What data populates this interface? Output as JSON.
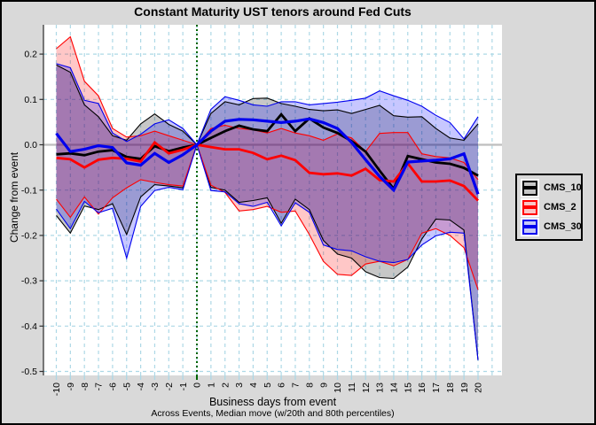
{
  "title": "Constant Maturity UST tenors around Fed Cuts",
  "axes": {
    "ylabel": "Change from event",
    "xlabel": "Business days from event",
    "xlabel_note": "Across Events, Median move (w/20th and 80th percentiles)",
    "ytick_labels": [
      "0.2",
      "0.1",
      "0.0",
      "-0.1",
      "-0.2",
      "-0.3",
      "-0.4",
      "-0.5"
    ],
    "ytick_values": [
      0.2,
      0.1,
      0.0,
      -0.1,
      -0.2,
      -0.3,
      -0.4,
      -0.5
    ]
  },
  "colors": {
    "background": "#d9d9d9",
    "panel": "#ffffff",
    "gridline": "#add8e6",
    "zero_line": "#bebebe",
    "event_line": "#006400",
    "axis": "#000000",
    "tick_x": "#add8e6",
    "tick_y": "#303030"
  },
  "chart_data": {
    "type": "line",
    "title": "Constant Maturity UST tenors around Fed Cuts",
    "xlabel": "Business days from event",
    "ylabel": "Change from event",
    "subtitle": "Across Events, Median move (w/20th and 80th percentiles)",
    "grid": true,
    "legend_position": "right",
    "xlim": [
      -10.9,
      21.7
    ],
    "ylim": [
      -0.51,
      0.265
    ],
    "event_line_x": 0,
    "x": [
      -10,
      -9,
      -8,
      -7,
      -6,
      -5,
      -4,
      -3,
      -2,
      -1,
      0,
      1,
      2,
      3,
      4,
      5,
      6,
      7,
      8,
      9,
      10,
      11,
      12,
      13,
      14,
      15,
      16,
      17,
      18,
      19,
      20
    ],
    "series": [
      {
        "name": "CMS_10",
        "color": "#000000",
        "band_fill": "rgba(0,0,0,0.22)",
        "key_fill": "#c6c6c6",
        "median": [
          -0.021,
          -0.019,
          -0.023,
          -0.015,
          -0.012,
          -0.027,
          -0.031,
          -0.003,
          -0.014,
          -0.006,
          0,
          0.015,
          0.03,
          0.042,
          0.034,
          0.03,
          0.067,
          0.03,
          0.058,
          0.038,
          0.026,
          0.008,
          -0.015,
          -0.057,
          -0.097,
          -0.025,
          -0.032,
          -0.039,
          -0.042,
          -0.051,
          -0.068
        ],
        "p80": [
          0.176,
          0.16,
          0.088,
          0.062,
          0.02,
          0.01,
          0.046,
          0.068,
          0.045,
          0.03,
          0,
          0.069,
          0.095,
          0.088,
          0.102,
          0.103,
          0.091,
          0.085,
          0.078,
          0.075,
          0.077,
          0.069,
          0.078,
          0.087,
          0.064,
          0.061,
          0.062,
          0.036,
          0.015,
          0.01,
          0.046
        ],
        "p20": [
          -0.156,
          -0.195,
          -0.135,
          -0.143,
          -0.13,
          -0.198,
          -0.115,
          -0.088,
          -0.091,
          -0.095,
          0,
          -0.094,
          -0.1,
          -0.127,
          -0.123,
          -0.117,
          -0.173,
          -0.12,
          -0.143,
          -0.211,
          -0.241,
          -0.25,
          -0.28,
          -0.293,
          -0.295,
          -0.27,
          -0.208,
          -0.164,
          -0.166,
          -0.188,
          -0.475
        ]
      },
      {
        "name": "CMS_2",
        "color": "#ff0000",
        "band_fill": "rgba(255,0,0,0.22)",
        "key_fill": "#f9c6c6",
        "median": [
          -0.029,
          -0.032,
          -0.05,
          -0.033,
          -0.029,
          -0.031,
          -0.037,
          0.005,
          -0.019,
          -0.011,
          0,
          -0.005,
          -0.01,
          -0.01,
          -0.018,
          -0.032,
          -0.024,
          -0.034,
          -0.062,
          -0.065,
          -0.063,
          -0.068,
          -0.053,
          -0.078,
          -0.081,
          -0.041,
          -0.081,
          -0.081,
          -0.079,
          -0.091,
          -0.123
        ],
        "p80": [
          0.212,
          0.238,
          0.14,
          0.108,
          0.036,
          0.017,
          0.02,
          0.03,
          0.02,
          0.01,
          0,
          0.036,
          0.043,
          0.036,
          0.033,
          0.026,
          0.036,
          0.026,
          0.02,
          0.01,
          0.024,
          0.015,
          -0.015,
          0.025,
          0.027,
          0.027,
          -0.02,
          -0.026,
          -0.029,
          -0.039,
          -0.077
        ],
        "p20": [
          -0.12,
          -0.16,
          -0.115,
          -0.153,
          -0.117,
          -0.095,
          -0.077,
          -0.083,
          -0.088,
          -0.091,
          0,
          -0.089,
          -0.105,
          -0.146,
          -0.143,
          -0.136,
          -0.149,
          -0.146,
          -0.198,
          -0.257,
          -0.286,
          -0.288,
          -0.263,
          -0.257,
          -0.267,
          -0.253,
          -0.195,
          -0.185,
          -0.2,
          -0.227,
          -0.32
        ]
      },
      {
        "name": "CMS_30",
        "color": "#0000ee",
        "band_fill": "rgba(0,0,255,0.22)",
        "key_fill": "#c6c9f7",
        "median": [
          0.025,
          -0.015,
          -0.01,
          -0.002,
          -0.006,
          -0.04,
          -0.045,
          -0.019,
          -0.039,
          -0.022,
          0,
          0.03,
          0.052,
          0.056,
          0.055,
          0.052,
          0.049,
          0.052,
          0.057,
          0.049,
          0.036,
          0.005,
          -0.033,
          -0.07,
          -0.1,
          -0.038,
          -0.036,
          -0.034,
          -0.031,
          -0.02,
          -0.109
        ],
        "p80": [
          0.179,
          0.17,
          0.098,
          0.091,
          0.026,
          0.007,
          0.023,
          0.046,
          0.055,
          0.036,
          0,
          0.078,
          0.106,
          0.098,
          0.088,
          0.085,
          0.095,
          0.095,
          0.088,
          0.091,
          0.094,
          0.098,
          0.103,
          0.119,
          0.108,
          0.098,
          0.085,
          0.065,
          0.049,
          0.013,
          0.062
        ],
        "p20": [
          -0.142,
          -0.185,
          -0.125,
          -0.15,
          -0.14,
          -0.25,
          -0.136,
          -0.101,
          -0.094,
          -0.099,
          0,
          -0.101,
          -0.104,
          -0.13,
          -0.136,
          -0.127,
          -0.179,
          -0.128,
          -0.149,
          -0.221,
          -0.231,
          -0.234,
          -0.247,
          -0.257,
          -0.26,
          -0.253,
          -0.221,
          -0.201,
          -0.193,
          -0.195,
          -0.475
        ]
      }
    ]
  }
}
